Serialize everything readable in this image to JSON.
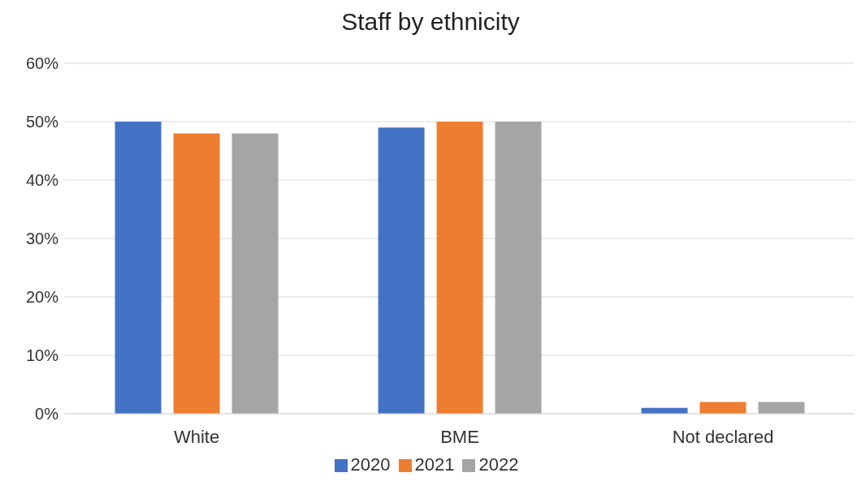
{
  "chart_data": {
    "type": "bar",
    "title": "Staff by ethnicity",
    "categories": [
      "White",
      "BME",
      "Not declared"
    ],
    "series": [
      {
        "name": "2020",
        "color": "#4472c4",
        "values": [
          50,
          49,
          1
        ]
      },
      {
        "name": "2021",
        "color": "#ed7d31",
        "values": [
          48,
          50,
          2
        ]
      },
      {
        "name": "2022",
        "color": "#a5a5a5",
        "values": [
          48,
          50,
          2
        ]
      }
    ],
    "ylim": [
      0,
      60
    ],
    "yticks": [
      {
        "value": 0,
        "label": "0%"
      },
      {
        "value": 10,
        "label": "10%"
      },
      {
        "value": 20,
        "label": "20%"
      },
      {
        "value": 30,
        "label": "30%"
      },
      {
        "value": 40,
        "label": "40%"
      },
      {
        "value": 50,
        "label": "50%"
      },
      {
        "value": 60,
        "label": "60%"
      }
    ],
    "grid": "y",
    "legend": "bottom"
  }
}
